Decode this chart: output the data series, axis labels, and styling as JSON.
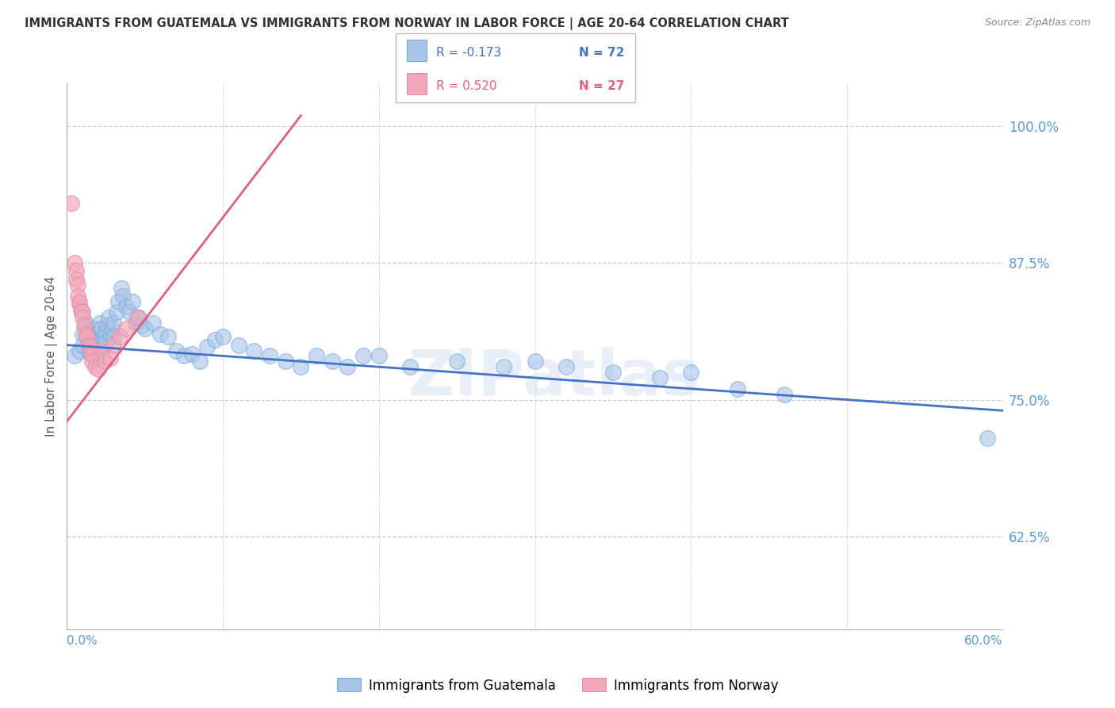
{
  "title": "IMMIGRANTS FROM GUATEMALA VS IMMIGRANTS FROM NORWAY IN LABOR FORCE | AGE 20-64 CORRELATION CHART",
  "source": "Source: ZipAtlas.com",
  "ylabel": "In Labor Force | Age 20-64",
  "right_ytick_labels": [
    "100.0%",
    "87.5%",
    "75.0%",
    "62.5%"
  ],
  "right_ytick_values": [
    1.0,
    0.875,
    0.75,
    0.625
  ],
  "xlim": [
    0.0,
    0.6
  ],
  "ylim": [
    0.54,
    1.04
  ],
  "watermark": "ZIPatlas",
  "legend_blue_r": "R = -0.173",
  "legend_blue_n": "N = 72",
  "legend_pink_r": "R = 0.520",
  "legend_pink_n": "N = 27",
  "blue_color": "#a8c4e8",
  "blue_line_color": "#4472c4",
  "pink_color": "#f4a7b9",
  "pink_line_color": "#e06080",
  "legend_label_blue": "Immigrants from Guatemala",
  "legend_label_pink": "Immigrants from Norway",
  "title_color": "#333333",
  "axis_label_color": "#5b9bd5",
  "guatemala_x": [
    0.005,
    0.008,
    0.01,
    0.01,
    0.012,
    0.012,
    0.013,
    0.014,
    0.015,
    0.015,
    0.016,
    0.017,
    0.018,
    0.018,
    0.019,
    0.02,
    0.02,
    0.021,
    0.022,
    0.022,
    0.023,
    0.024,
    0.025,
    0.025,
    0.026,
    0.027,
    0.028,
    0.029,
    0.03,
    0.03,
    0.032,
    0.033,
    0.035,
    0.036,
    0.038,
    0.04,
    0.042,
    0.044,
    0.046,
    0.048,
    0.05,
    0.055,
    0.06,
    0.065,
    0.07,
    0.075,
    0.08,
    0.085,
    0.09,
    0.095,
    0.1,
    0.11,
    0.12,
    0.13,
    0.14,
    0.15,
    0.16,
    0.17,
    0.18,
    0.19,
    0.2,
    0.22,
    0.25,
    0.28,
    0.3,
    0.32,
    0.35,
    0.38,
    0.4,
    0.43,
    0.46,
    0.59
  ],
  "guatemala_y": [
    0.79,
    0.795,
    0.8,
    0.81,
    0.82,
    0.815,
    0.808,
    0.795,
    0.792,
    0.802,
    0.798,
    0.812,
    0.805,
    0.815,
    0.788,
    0.8,
    0.81,
    0.82,
    0.805,
    0.815,
    0.798,
    0.808,
    0.812,
    0.802,
    0.818,
    0.825,
    0.81,
    0.815,
    0.82,
    0.808,
    0.83,
    0.84,
    0.852,
    0.845,
    0.835,
    0.83,
    0.84,
    0.82,
    0.825,
    0.818,
    0.815,
    0.82,
    0.81,
    0.808,
    0.795,
    0.79,
    0.792,
    0.785,
    0.798,
    0.805,
    0.808,
    0.8,
    0.795,
    0.79,
    0.785,
    0.78,
    0.79,
    0.785,
    0.78,
    0.79,
    0.79,
    0.78,
    0.785,
    0.78,
    0.785,
    0.78,
    0.775,
    0.77,
    0.775,
    0.76,
    0.755,
    0.715
  ],
  "norway_x": [
    0.003,
    0.005,
    0.006,
    0.006,
    0.007,
    0.007,
    0.008,
    0.008,
    0.009,
    0.01,
    0.01,
    0.011,
    0.012,
    0.013,
    0.014,
    0.015,
    0.016,
    0.016,
    0.018,
    0.02,
    0.022,
    0.024,
    0.028,
    0.03,
    0.034,
    0.038,
    0.045
  ],
  "norway_y": [
    0.93,
    0.875,
    0.868,
    0.86,
    0.855,
    0.845,
    0.838,
    0.84,
    0.832,
    0.83,
    0.825,
    0.818,
    0.81,
    0.808,
    0.8,
    0.798,
    0.792,
    0.785,
    0.78,
    0.778,
    0.795,
    0.785,
    0.788,
    0.8,
    0.808,
    0.815,
    0.825
  ],
  "blue_trend_x": [
    0.0,
    0.6
  ],
  "blue_trend_y": [
    0.8,
    0.74
  ],
  "pink_trend_x": [
    0.0,
    0.15
  ],
  "pink_trend_y": [
    0.73,
    1.01
  ],
  "xtick_positions": [
    0.0,
    0.1,
    0.2,
    0.3,
    0.4,
    0.5,
    0.6
  ]
}
